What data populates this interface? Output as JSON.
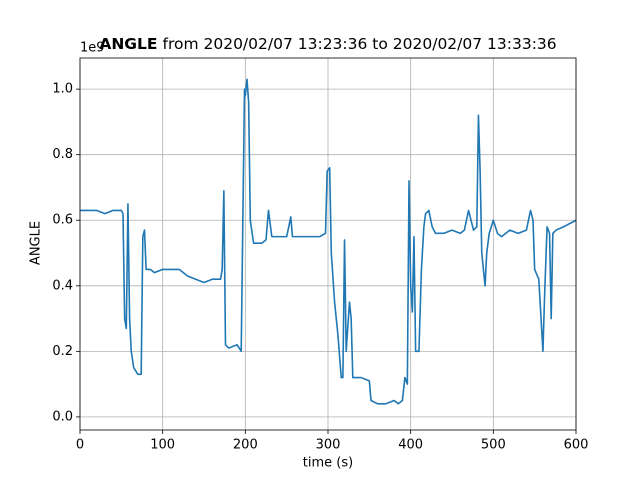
{
  "chart_data": {
    "type": "line",
    "title_bold": "ANGLE",
    "title": "from 2020/02/07 13:23:36 to 2020/02/07 13:33:36",
    "x_label": "time (s)",
    "y_label": "ANGLE",
    "y_offset_label": "1e9",
    "xlim": [
      0,
      600
    ],
    "ylim": [
      -0.04,
      1.095
    ],
    "xticks": [
      0,
      100,
      200,
      300,
      400,
      500,
      600
    ],
    "yticks": [
      {
        "value": 0,
        "label": "0.0"
      },
      0.2,
      0.4,
      0.6,
      0.8,
      {
        "value": 1,
        "label": "1.0"
      }
    ],
    "grid": true,
    "x": [
      0,
      10,
      20,
      30,
      40,
      50,
      52,
      54,
      56,
      58,
      60,
      62,
      65,
      70,
      74,
      76,
      78,
      80,
      85,
      90,
      100,
      110,
      120,
      125,
      130,
      140,
      150,
      160,
      170,
      172,
      174,
      176,
      180,
      190,
      195,
      197,
      199,
      200,
      202,
      204,
      206,
      210,
      220,
      225,
      228,
      232,
      240,
      250,
      255,
      257,
      270,
      280,
      290,
      297,
      299,
      302,
      304,
      308,
      312,
      316,
      318,
      320,
      322,
      326,
      328,
      330,
      340,
      350,
      352,
      360,
      370,
      380,
      385,
      390,
      393,
      396,
      398,
      400,
      402,
      404,
      406,
      410,
      413,
      416,
      418,
      422,
      426,
      430,
      440,
      450,
      460,
      465,
      470,
      473,
      476,
      480,
      482,
      484,
      486,
      488,
      490,
      492,
      495,
      500,
      505,
      510,
      520,
      530,
      540,
      545,
      548,
      550,
      555,
      560,
      562,
      565,
      568,
      570,
      572,
      576,
      585,
      600
    ],
    "series": [
      {
        "name": "ANGLE",
        "color": "#1f77b4",
        "values": [
          0.63,
          0.63,
          0.63,
          0.62,
          0.63,
          0.63,
          0.62,
          0.3,
          0.27,
          0.65,
          0.3,
          0.2,
          0.15,
          0.13,
          0.13,
          0.55,
          0.57,
          0.45,
          0.45,
          0.44,
          0.45,
          0.45,
          0.45,
          0.44,
          0.43,
          0.42,
          0.41,
          0.42,
          0.42,
          0.45,
          0.69,
          0.22,
          0.21,
          0.22,
          0.2,
          0.6,
          1.0,
          0.98,
          1.03,
          0.96,
          0.6,
          0.53,
          0.53,
          0.54,
          0.63,
          0.55,
          0.55,
          0.55,
          0.61,
          0.55,
          0.55,
          0.55,
          0.55,
          0.56,
          0.75,
          0.76,
          0.5,
          0.35,
          0.25,
          0.12,
          0.12,
          0.54,
          0.2,
          0.35,
          0.3,
          0.12,
          0.12,
          0.11,
          0.05,
          0.04,
          0.04,
          0.05,
          0.04,
          0.05,
          0.12,
          0.1,
          0.72,
          0.4,
          0.32,
          0.55,
          0.2,
          0.2,
          0.45,
          0.58,
          0.62,
          0.63,
          0.58,
          0.56,
          0.56,
          0.57,
          0.56,
          0.57,
          0.63,
          0.6,
          0.57,
          0.58,
          0.92,
          0.75,
          0.5,
          0.45,
          0.4,
          0.5,
          0.56,
          0.6,
          0.56,
          0.55,
          0.57,
          0.56,
          0.57,
          0.63,
          0.6,
          0.45,
          0.42,
          0.2,
          0.37,
          0.58,
          0.56,
          0.3,
          0.56,
          0.57,
          0.58,
          0.6
        ]
      }
    ]
  }
}
